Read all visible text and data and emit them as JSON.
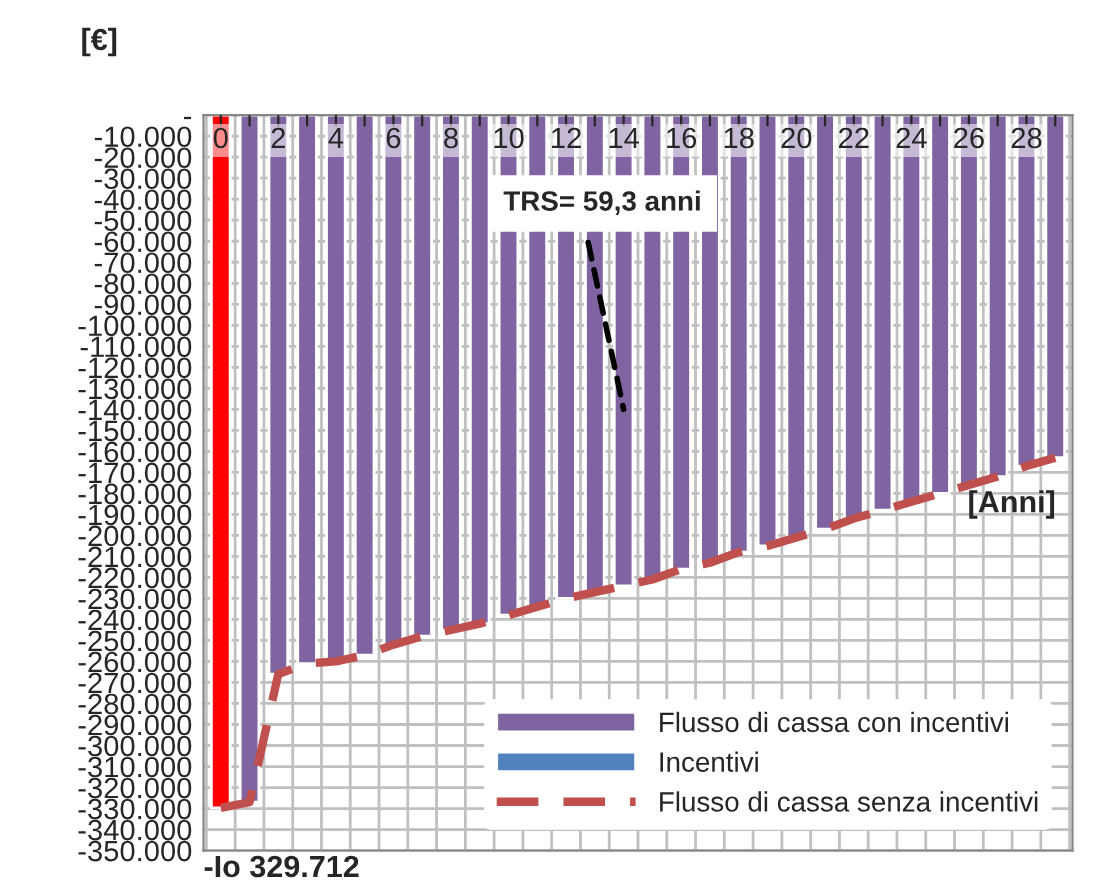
{
  "chart_data": {
    "type": "bar",
    "ylabel": "[€]",
    "xlabel": "[Anni]",
    "categories": [
      "0",
      null,
      "2",
      null,
      "4",
      null,
      "6",
      null,
      "8",
      null,
      "10",
      null,
      "12",
      null,
      "14",
      null,
      "16",
      null,
      "18",
      null,
      "20",
      null,
      "22",
      null,
      "24",
      null,
      "26",
      null,
      "28",
      null
    ],
    "series": [
      {
        "name": "Flusso di cassa con incentivi",
        "color": "#8064a2",
        "colors": [
          "#ff0000",
          "#8064a2",
          "#8064a2",
          "#8064a2",
          "#8064a2",
          "#8064a2",
          "#8064a2",
          "#8064a2",
          "#8064a2",
          "#8064a2",
          "#8064a2",
          "#8064a2",
          "#8064a2",
          "#8064a2",
          "#8064a2",
          "#8064a2",
          "#8064a2",
          "#8064a2",
          "#8064a2",
          "#8064a2",
          "#8064a2",
          "#8064a2",
          "#8064a2",
          "#8064a2",
          "#8064a2",
          "#8064a2",
          "#8064a2",
          "#8064a2",
          "#8064a2",
          "#8064a2"
        ],
        "values": [
          -329712,
          -327000,
          -266000,
          -261000,
          -260000,
          -257000,
          -252000,
          -248000,
          -245000,
          -242000,
          -238000,
          -234000,
          -230000,
          -227000,
          -224000,
          -221000,
          -216000,
          -213000,
          -208000,
          -205000,
          -201000,
          -197000,
          -192000,
          -188000,
          -184000,
          -180000,
          -176000,
          -172000,
          -167000,
          -163000
        ]
      },
      {
        "name": "Incentivi",
        "color": "#4f81bd",
        "values": [
          null,
          null,
          null,
          null,
          null,
          null,
          null,
          null,
          null,
          null,
          null,
          null,
          null,
          null,
          null,
          null,
          null,
          null,
          null,
          null,
          null,
          null,
          null,
          null,
          null,
          null,
          null,
          null,
          null,
          null
        ]
      },
      {
        "name": "Flusso di cassa senza incentivi",
        "type": "line",
        "color": "#c0504d",
        "line_style": "dashed",
        "values": [
          -329712,
          -327000,
          -266000,
          -261000,
          -260000,
          -257000,
          -252000,
          -248000,
          -245000,
          -242000,
          -238000,
          -234000,
          -230000,
          -227000,
          -224000,
          -221000,
          -216000,
          -213000,
          -208000,
          -205000,
          -201000,
          -197000,
          -192000,
          -188000,
          -184000,
          -180000,
          -176000,
          -172000,
          -167000,
          -163000
        ]
      }
    ],
    "ylim": [
      -350000,
      0
    ],
    "yticks": [
      {
        "value": 0,
        "label": "-"
      },
      {
        "value": -10000,
        "label": "-10.000"
      },
      {
        "value": -20000,
        "label": "-20.000"
      },
      {
        "value": -30000,
        "label": "-30.000"
      },
      {
        "value": -40000,
        "label": "-40.000"
      },
      {
        "value": -50000,
        "label": "-50.000"
      },
      {
        "value": -60000,
        "label": "-60.000"
      },
      {
        "value": -70000,
        "label": "-70.000"
      },
      {
        "value": -80000,
        "label": "-80.000"
      },
      {
        "value": -90000,
        "label": "-90.000"
      },
      {
        "value": -100000,
        "label": "-100.000"
      },
      {
        "value": -110000,
        "label": "-110.000"
      },
      {
        "value": -120000,
        "label": "-120.000"
      },
      {
        "value": -130000,
        "label": "-130.000"
      },
      {
        "value": -140000,
        "label": "-140.000"
      },
      {
        "value": -150000,
        "label": "-150.000"
      },
      {
        "value": -160000,
        "label": "-160.000"
      },
      {
        "value": -170000,
        "label": "-170.000"
      },
      {
        "value": -180000,
        "label": "-180.000"
      },
      {
        "value": -190000,
        "label": "-190.000"
      },
      {
        "value": -200000,
        "label": "-200.000"
      },
      {
        "value": -210000,
        "label": "-210.000"
      },
      {
        "value": -220000,
        "label": "-220.000"
      },
      {
        "value": -230000,
        "label": "-230.000"
      },
      {
        "value": -240000,
        "label": "-240.000"
      },
      {
        "value": -250000,
        "label": "-250.000"
      },
      {
        "value": -260000,
        "label": "-260.000"
      },
      {
        "value": -270000,
        "label": "-270.000"
      },
      {
        "value": -280000,
        "label": "-280.000"
      },
      {
        "value": -290000,
        "label": "-290.000"
      },
      {
        "value": -300000,
        "label": "-300.000"
      },
      {
        "value": -310000,
        "label": "-310.000"
      },
      {
        "value": -320000,
        "label": "-320.000"
      },
      {
        "value": -330000,
        "label": "-330.000"
      },
      {
        "value": -340000,
        "label": "-340.000"
      },
      {
        "value": -350000,
        "label": "-350.000"
      }
    ],
    "annotations": [
      {
        "text": "TRS= 59,3 anni",
        "x": "14",
        "y": -140000
      },
      "-Io 329.712"
    ],
    "grid": true,
    "legend": "bottom right"
  }
}
